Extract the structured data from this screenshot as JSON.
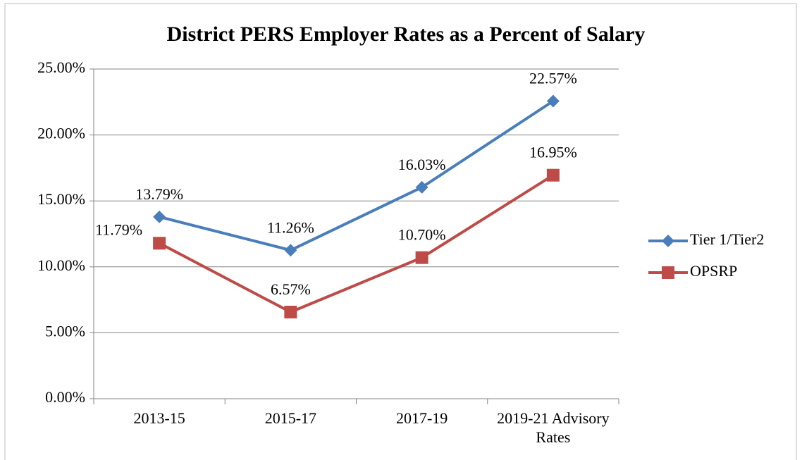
{
  "chart_data": {
    "type": "line",
    "title": "District PERS Employer Rates as a Percent of Salary",
    "categories": [
      "2013-15",
      "2015-17",
      "2017-19",
      "2019-21 Advisory Rates"
    ],
    "series": [
      {
        "name": "Tier 1/Tier2",
        "color": "#4a7ebb",
        "marker": "diamond",
        "values": [
          13.79,
          11.26,
          16.03,
          22.57
        ],
        "value_labels": [
          "13.79%",
          "11.26%",
          "16.03%",
          "22.57%"
        ]
      },
      {
        "name": "OPSRP",
        "color": "#be4b48",
        "marker": "square",
        "values": [
          11.79,
          6.57,
          10.7,
          16.95
        ],
        "value_labels": [
          "11.79%",
          "6.57%",
          "10.70%",
          "16.95%"
        ]
      }
    ],
    "ylim": [
      0,
      25
    ],
    "yticks": [
      {
        "value": 0,
        "label": "0.00%"
      },
      {
        "value": 5,
        "label": "5.00%"
      },
      {
        "value": 10,
        "label": "10.00%"
      },
      {
        "value": 15,
        "label": "15.00%"
      },
      {
        "value": 20,
        "label": "20.00%"
      },
      {
        "value": 25,
        "label": "25.00%"
      }
    ],
    "grid": true,
    "legend": "right"
  }
}
